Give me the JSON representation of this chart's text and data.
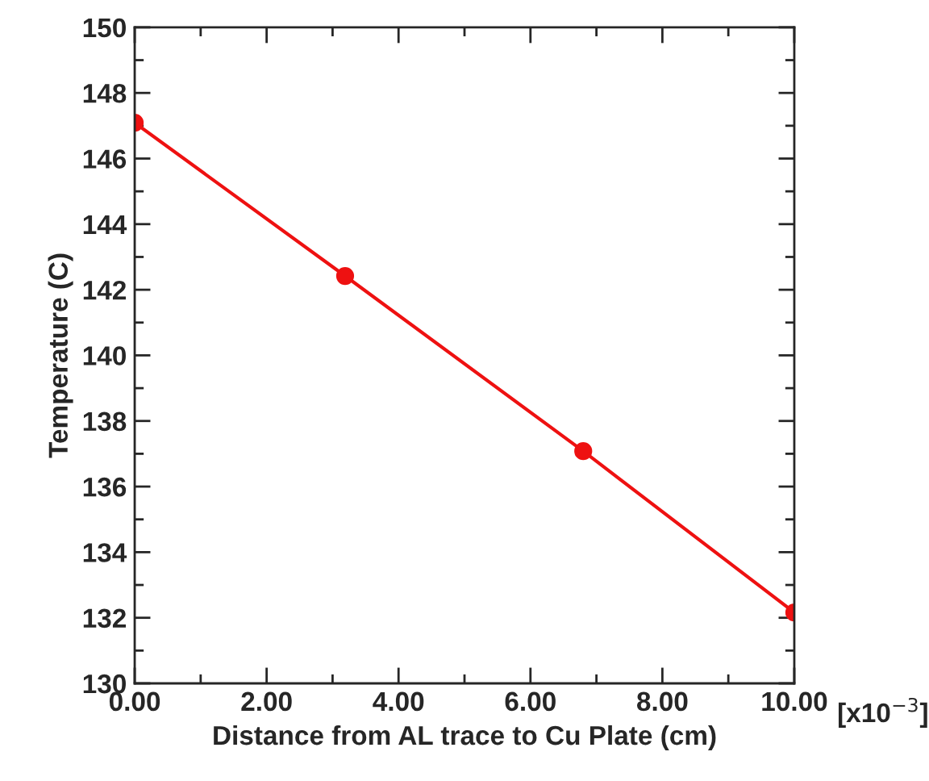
{
  "chart_data": {
    "type": "line",
    "xlabel": "Distance from AL trace to Cu Plate (cm)",
    "ylabel": "Temperature (C)",
    "x": [
      0,
      3.19,
      6.8,
      10
    ],
    "series": [
      {
        "color": "#ee1111",
        "values": [
          147.09,
          142.42,
          137.08,
          132.16
        ]
      }
    ],
    "xlim": [
      0,
      10
    ],
    "xticks": [
      {
        "value": 0,
        "label": "0.00"
      },
      {
        "value": 2,
        "label": "2.00"
      },
      {
        "value": 4,
        "label": "4.00"
      },
      {
        "value": 6,
        "label": "6.00"
      },
      {
        "value": 8,
        "label": "8.00"
      },
      {
        "value": 10,
        "label": "10.00"
      }
    ],
    "ylim": [
      130,
      150
    ],
    "yticks": [
      130,
      132,
      134,
      136,
      138,
      140,
      142,
      144,
      146,
      148,
      150
    ],
    "annotations": [
      "[x10$^{−3}$]"
    ],
    "grid": false,
    "legend": false,
    "marker": "circle",
    "line_style": "solid"
  }
}
